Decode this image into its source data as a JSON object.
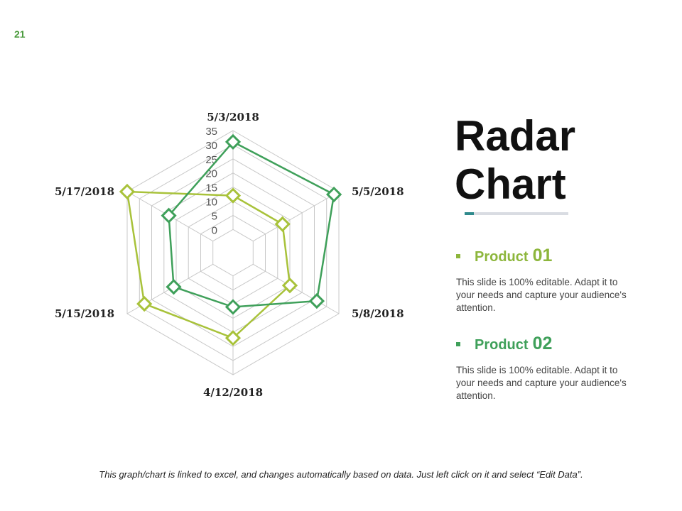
{
  "slide_number": "21",
  "title_line1": "Radar",
  "title_line2": "Chart",
  "accent_color": "#2f8a8c",
  "products": [
    {
      "label": "Product",
      "number": "01",
      "color": "#8db63c",
      "description": "This slide is 100% editable. Adapt it to your needs and capture your audience's attention."
    },
    {
      "label": "Product",
      "number": "02",
      "color": "#3fa05a",
      "description": "This slide is 100% editable. Adapt it to your needs and capture your audience's attention."
    }
  ],
  "footer_note": "This graph/chart is linked to excel, and changes automatically based on data.  Just left click on it and select “Edit Data”.",
  "chart_data": {
    "type": "radar",
    "categories": [
      "5/3/2018",
      "5/5/2018",
      "5/8/2018",
      "4/12/2018",
      "5/15/2018",
      "5/17/2018"
    ],
    "rlim": [
      0,
      35
    ],
    "ticks": [
      "0",
      "5",
      "10",
      "15",
      "20",
      "25",
      "30",
      "35"
    ],
    "grid": true,
    "series": [
      {
        "name": "Product 01",
        "color": "#a8c23a",
        "values": [
          12,
          12,
          15,
          22,
          28,
          35
        ]
      },
      {
        "name": "Product 02",
        "color": "#3fa05a",
        "values": [
          31,
          33,
          26,
          11,
          16,
          18
        ]
      }
    ]
  }
}
